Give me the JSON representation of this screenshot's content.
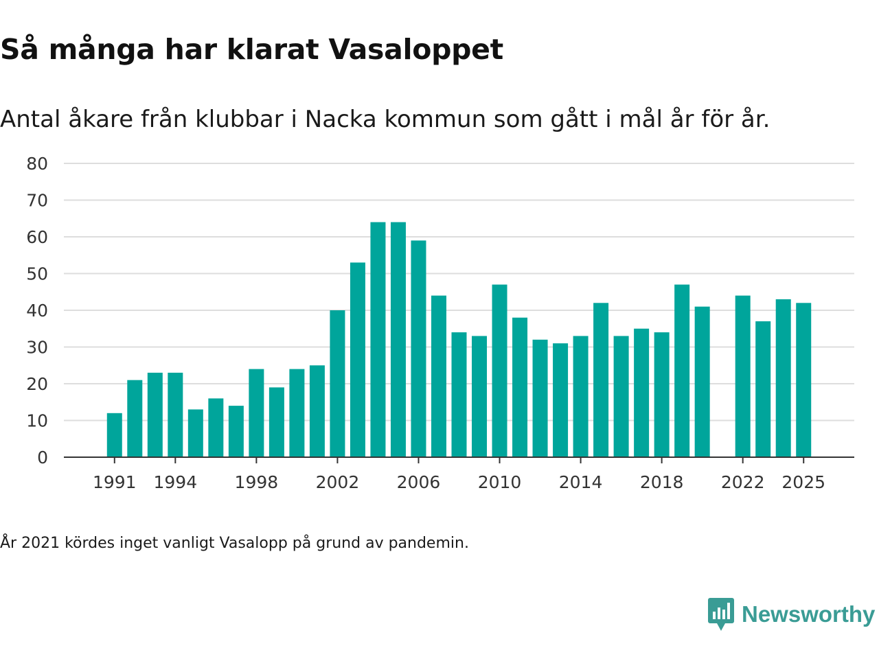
{
  "title": "Så många har klarat Vasaloppet",
  "subtitle": "Antal åkare från klubbar i Nacka kommun som gått i mål år för år.",
  "footnote": "År 2021 kördes inget vanligt Vasalopp på grund av pandemin.",
  "brand": {
    "name": "Newsworthy",
    "icon": "newsworthy-logo-icon",
    "color": "#3a9c95"
  },
  "colors": {
    "bar": "#00a59b",
    "grid": "#dddddd",
    "axis": "#333333"
  },
  "chart_data": {
    "type": "bar",
    "title": "Så många har klarat Vasaloppet",
    "xlabel": "",
    "ylabel": "",
    "ylim": [
      0,
      80
    ],
    "yticks": [
      0,
      10,
      20,
      30,
      40,
      50,
      60,
      70,
      80
    ],
    "xlim": [
      1988.5,
      2027.5
    ],
    "xticks": [
      1991,
      1994,
      1998,
      2002,
      2006,
      2010,
      2014,
      2018,
      2022,
      2025
    ],
    "grid": true,
    "categories": [
      1991,
      1992,
      1993,
      1994,
      1995,
      1996,
      1997,
      1998,
      1999,
      2000,
      2001,
      2002,
      2003,
      2004,
      2005,
      2006,
      2007,
      2008,
      2009,
      2010,
      2011,
      2012,
      2013,
      2014,
      2015,
      2016,
      2017,
      2018,
      2019,
      2020,
      2022,
      2023,
      2024,
      2025
    ],
    "values": [
      12,
      21,
      23,
      23,
      13,
      16,
      14,
      24,
      19,
      24,
      25,
      40,
      53,
      64,
      64,
      59,
      44,
      34,
      33,
      47,
      38,
      32,
      31,
      33,
      42,
      33,
      35,
      34,
      47,
      41,
      44,
      37,
      43,
      42
    ]
  }
}
